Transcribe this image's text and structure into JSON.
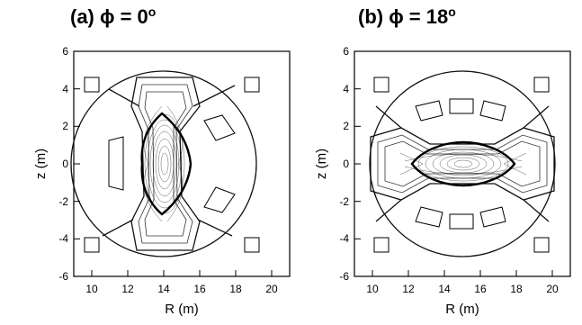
{
  "figure": {
    "panels": [
      {
        "id": "a",
        "title": "(a) ϕ = 0",
        "title_superscript": "o",
        "configuration": "vertical",
        "xlabel": "R (m)",
        "ylabel": "z (m)",
        "xticks": [
          "10",
          "12",
          "14",
          "16",
          "18",
          "20"
        ],
        "yticks": [
          "6",
          "4",
          "2",
          "0",
          "-2",
          "-4",
          "-6"
        ]
      },
      {
        "id": "b",
        "title": "(b) ϕ = 18",
        "title_superscript": "o",
        "configuration": "horizontal",
        "xlabel": "R (m)",
        "ylabel": "z (m)",
        "xticks": [
          "10",
          "12",
          "14",
          "16",
          "18",
          "20"
        ],
        "yticks": [
          "6",
          "4",
          "2",
          "0",
          "-2",
          "-4",
          "-6"
        ]
      }
    ]
  },
  "chart_data": [
    {
      "type": "contour",
      "title": "(a) ϕ = 0o",
      "xlabel": "R (m)",
      "ylabel": "z (m)",
      "xlim": [
        9,
        21
      ],
      "ylim": [
        -6,
        6
      ],
      "plasma": {
        "center_R": 15.0,
        "center_z": 0.0,
        "elongation": "vertical"
      },
      "coils": [
        {
          "R": 10.6,
          "z": 4.2
        },
        {
          "R": 19.6,
          "z": 4.2
        },
        {
          "R": 10.6,
          "z": -4.2
        },
        {
          "R": 19.6,
          "z": -4.2
        },
        {
          "R": 12.0,
          "z": 0.0
        },
        {
          "R": 17.6,
          "z": 2.0
        },
        {
          "R": 17.6,
          "z": -2.0
        }
      ]
    },
    {
      "type": "contour",
      "title": "(b) ϕ = 18o",
      "xlabel": "R (m)",
      "ylabel": "z (m)",
      "xlim": [
        9,
        21
      ],
      "ylim": [
        -6,
        6
      ],
      "plasma": {
        "center_R": 15.0,
        "center_z": 0.0,
        "elongation": "horizontal"
      },
      "coils": [
        {
          "R": 10.6,
          "z": 4.2
        },
        {
          "R": 19.6,
          "z": 4.2
        },
        {
          "R": 10.6,
          "z": -4.2
        },
        {
          "R": 19.6,
          "z": -4.2
        },
        {
          "R": 13.2,
          "z": 2.5
        },
        {
          "R": 15.0,
          "z": 2.7
        },
        {
          "R": 16.8,
          "z": 2.5
        },
        {
          "R": 13.2,
          "z": -2.5
        },
        {
          "R": 15.0,
          "z": -2.7
        },
        {
          "R": 16.8,
          "z": -2.5
        }
      ]
    }
  ]
}
